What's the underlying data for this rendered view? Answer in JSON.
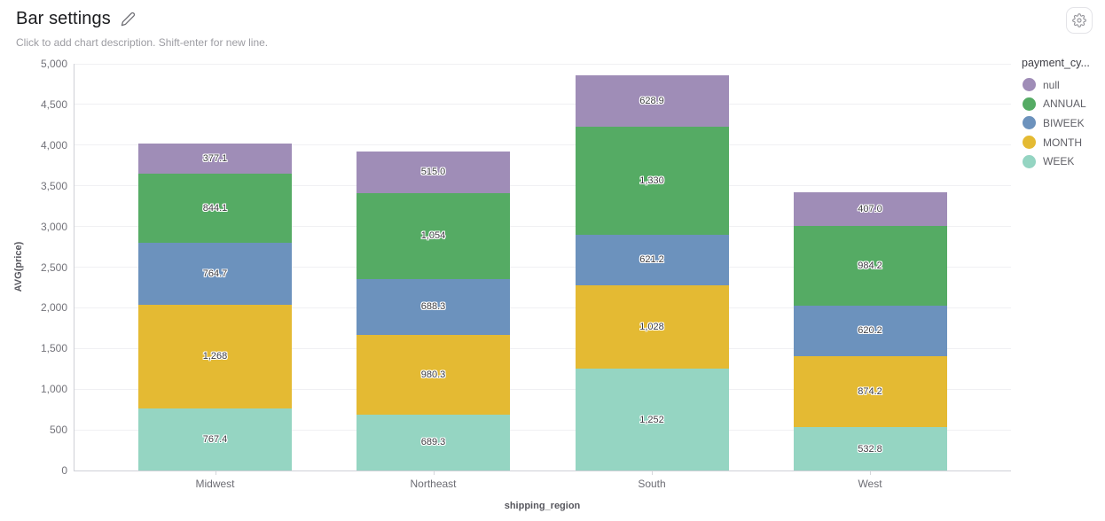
{
  "header": {
    "title": "Bar settings",
    "subtitle": "Click to add chart description. Shift-enter for new line.",
    "icons": {
      "edit": "pencil",
      "settings": "gear"
    }
  },
  "chart_data": {
    "type": "bar",
    "stacked": true,
    "categories": [
      "Midwest",
      "Northeast",
      "South",
      "West"
    ],
    "series": [
      {
        "name": "WEEK",
        "color": "#95d5c2",
        "values": [
          767.4,
          689.3,
          1252,
          532.8
        ],
        "labels": [
          "767.4",
          "689.3",
          "1,252",
          "532.8"
        ]
      },
      {
        "name": "MONTH",
        "color": "#e4ba33",
        "values": [
          1268,
          980.3,
          1028,
          874.2
        ],
        "labels": [
          "1,268",
          "980.3",
          "1,028",
          "874.2"
        ]
      },
      {
        "name": "BIWEEK",
        "color": "#6c92bd",
        "values": [
          764.7,
          688.3,
          621.2,
          620.2
        ],
        "labels": [
          "764.7",
          "688.3",
          "621.2",
          "620.2"
        ]
      },
      {
        "name": "ANNUAL",
        "color": "#55ab64",
        "values": [
          844.1,
          1054,
          1330,
          984.2
        ],
        "labels": [
          "844.1",
          "1,054",
          "1,330",
          "984.2"
        ]
      },
      {
        "name": "null",
        "color": "#9f8db7",
        "values": [
          377.1,
          515.0,
          628.9,
          407.0
        ],
        "labels": [
          "377.1",
          "515.0",
          "628.9",
          "407.0"
        ]
      }
    ],
    "xlabel": "shipping_region",
    "ylabel": "AVG(price)",
    "ylim": [
      0,
      5000
    ],
    "ytick_step": 500,
    "ytick_labels": [
      "0",
      "500",
      "1,000",
      "1,500",
      "2,000",
      "2,500",
      "3,000",
      "3,500",
      "4,000",
      "4,500",
      "5,000"
    ],
    "grid": true,
    "legend": {
      "title": "payment_cy...",
      "position": "right",
      "items": [
        {
          "label": "null",
          "color": "#9f8db7"
        },
        {
          "label": "ANNUAL",
          "color": "#55ab64"
        },
        {
          "label": "BIWEEK",
          "color": "#6c92bd"
        },
        {
          "label": "MONTH",
          "color": "#e4ba33"
        },
        {
          "label": "WEEK",
          "color": "#95d5c2"
        }
      ]
    }
  }
}
